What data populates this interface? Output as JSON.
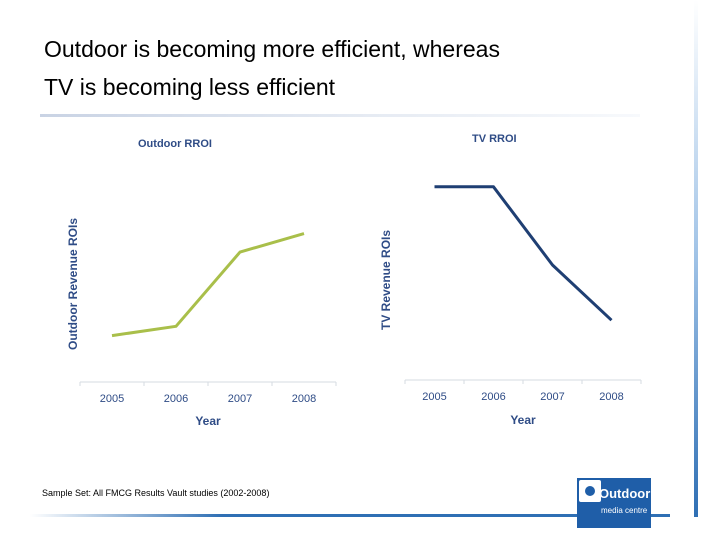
{
  "slide": {
    "title_line1": "Outdoor is becoming more efficient, whereas",
    "title_line2": "TV is becoming less efficient",
    "footnote": "Sample Set: All FMCG Results Vault studies (2002-2008)",
    "logo_text": "Outdoor",
    "logo_sub": "media centre"
  },
  "colors": {
    "outdoor_line": "#a9bf4a",
    "tv_line": "#1f3f73",
    "label_color": "#2f4c86"
  },
  "chart_data": [
    {
      "type": "line",
      "title": "Outdoor RROI",
      "xlabel": "Year",
      "ylabel": "Outdoor  Revenue ROIs",
      "categories": [
        "2005",
        "2006",
        "2007",
        "2008"
      ],
      "series": [
        {
          "values": [
            1.0,
            1.2,
            2.8,
            3.2
          ]
        }
      ],
      "ylim": [
        0,
        5
      ],
      "grid": false
    },
    {
      "type": "line",
      "title": "TV RROI",
      "xlabel": "Year",
      "ylabel": "TV  Revenue ROIs",
      "categories": [
        "2005",
        "2006",
        "2007",
        "2008"
      ],
      "series": [
        {
          "values": [
            4.2,
            4.2,
            2.5,
            1.3
          ]
        }
      ],
      "ylim": [
        0,
        5
      ],
      "grid": false
    }
  ]
}
